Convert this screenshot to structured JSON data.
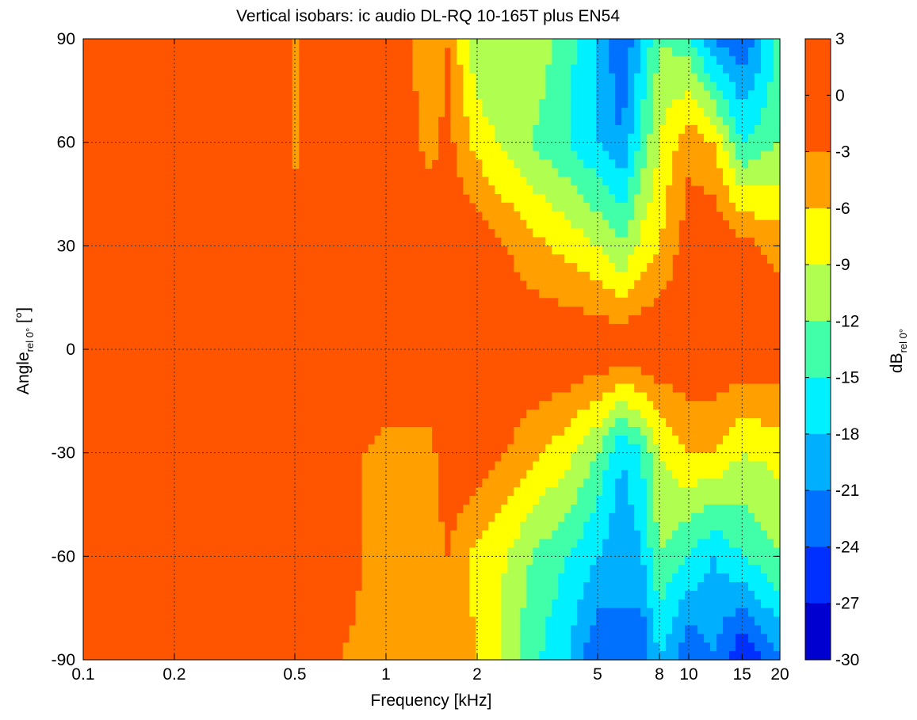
{
  "chart_data": {
    "type": "heatmap",
    "title": "Vertical isobars: ic audio  DL-RQ 10-165T plus EN54",
    "xlabel": "Frequency [kHz]",
    "ylabel_main": "Angle",
    "ylabel_sub": "rel 0°",
    "ylabel_unit": " [°]",
    "colorbar_label_main": "dB",
    "colorbar_label_sub": "rel 0°",
    "x_scale": "log",
    "xlim": [
      0.1,
      20
    ],
    "ylim": [
      -90,
      90
    ],
    "x_ticks": [
      0.1,
      0.2,
      0.5,
      1,
      2,
      5,
      8,
      10,
      15,
      20
    ],
    "x_tick_labels": [
      "0.1",
      "0.2",
      "0.5",
      "1",
      "2",
      "5",
      "8",
      "10",
      "15",
      "20"
    ],
    "y_ticks": [
      90,
      60,
      30,
      0,
      -30,
      -60,
      -90
    ],
    "y_tick_labels": [
      "90",
      "60",
      "30",
      "0",
      "-30",
      "-60",
      "-90"
    ],
    "grid": true,
    "colorbar": {
      "levels": [
        3,
        0,
        -3,
        -6,
        -9,
        -12,
        -15,
        -18,
        -21,
        -24,
        -27,
        -30
      ],
      "tick_labels": [
        "3",
        "0",
        "-3",
        "-6",
        "-9",
        "-12",
        "-15",
        "-18",
        "-21",
        "-24",
        "-27",
        "-30"
      ],
      "colors": [
        "#ff5500",
        "#ff5500",
        "#ffa000",
        "#ffff00",
        "#b0ff50",
        "#40ffa8",
        "#00f0ff",
        "#00b0ff",
        "#0070ff",
        "#0030ff",
        "#0000d0"
      ]
    },
    "series": [
      {
        "angle": 90,
        "freq_khz": [
          0.1,
          0.45,
          0.5,
          0.6,
          1,
          1.4,
          1.6,
          2,
          2.5,
          3,
          4,
          5,
          6,
          7,
          8,
          10,
          12,
          15,
          20
        ],
        "db": [
          0,
          0,
          -4,
          0,
          0,
          -5,
          -3,
          -12,
          -12,
          -9,
          -14,
          -18,
          -24,
          -18,
          -12,
          -14,
          -21,
          -24,
          -14
        ]
      },
      {
        "angle": 60,
        "freq_khz": [
          0.1,
          0.45,
          0.5,
          0.6,
          1,
          1.4,
          1.6,
          2,
          2.5,
          3,
          4,
          5,
          6,
          7,
          8,
          10,
          12,
          15,
          20
        ],
        "db": [
          0,
          0,
          -4,
          0,
          0,
          -4,
          -2,
          -7,
          -10,
          -12,
          -15,
          -18,
          -21,
          -14,
          -9,
          -4,
          -6,
          -15,
          -12
        ]
      },
      {
        "angle": 30,
        "freq_khz": [
          0.1,
          0.5,
          1,
          2,
          2.5,
          3,
          4,
          5,
          6,
          7,
          8,
          10,
          12,
          15,
          20
        ],
        "db": [
          0,
          0,
          0,
          -1,
          -3,
          -5,
          -7,
          -9,
          -12,
          -8,
          -6,
          -1,
          0,
          -2,
          -4
        ]
      },
      {
        "angle": 0,
        "freq_khz": [
          0.1,
          0.5,
          1,
          2,
          3,
          5,
          8,
          10,
          15,
          20
        ],
        "db": [
          0,
          0,
          0,
          0,
          0,
          0,
          0,
          0,
          0,
          0
        ]
      },
      {
        "angle": -30,
        "freq_khz": [
          0.1,
          0.5,
          1,
          1.4,
          1.6,
          2,
          2.5,
          3,
          4,
          5,
          6,
          7,
          8,
          10,
          12,
          15,
          20
        ],
        "db": [
          0,
          0,
          -4,
          -4,
          0,
          -1,
          -3,
          -5,
          -8,
          -12,
          -18,
          -15,
          -9,
          -6,
          -6,
          -9,
          -8
        ]
      },
      {
        "angle": -60,
        "freq_khz": [
          0.1,
          0.5,
          1,
          1.4,
          1.6,
          2,
          2.5,
          3,
          4,
          5,
          6,
          7,
          8,
          10,
          12,
          15,
          20
        ],
        "db": [
          0,
          0,
          -4,
          -5,
          -3,
          -7,
          -9,
          -12,
          -15,
          -18,
          -21,
          -18,
          -12,
          -15,
          -18,
          -15,
          -12
        ]
      },
      {
        "angle": -90,
        "freq_khz": [
          0.1,
          0.5,
          1,
          1.4,
          1.6,
          2,
          2.5,
          3,
          4,
          5,
          6,
          7,
          8,
          10,
          12,
          15,
          20
        ],
        "db": [
          0,
          -2,
          -4,
          -5,
          -4,
          -6,
          -10,
          -14,
          -18,
          -24,
          -21,
          -24,
          -18,
          -24,
          -21,
          -27,
          -21
        ]
      }
    ]
  }
}
